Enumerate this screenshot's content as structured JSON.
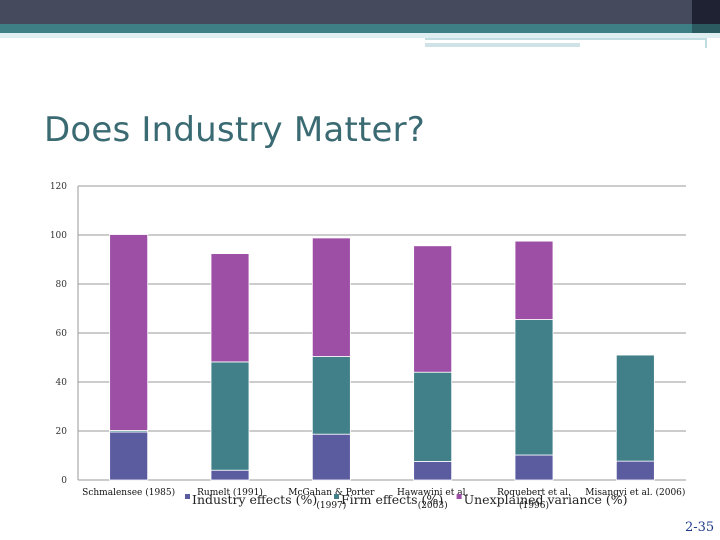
{
  "slide": {
    "title": "Does Industry Matter?",
    "page_number": "2-35"
  },
  "colors": {
    "industry": "#5b5ba0",
    "firm": "#418088",
    "unexplained": "#9d4fa5",
    "axis": "#9a9a9a"
  },
  "chart_data": {
    "type": "bar",
    "stacked": true,
    "title": "",
    "xlabel": "",
    "ylabel": "",
    "ylim": [
      0,
      120
    ],
    "yticks": [
      0,
      20,
      40,
      60,
      80,
      100,
      120
    ],
    "grid": true,
    "legend_position": "bottom",
    "categories": [
      [
        "Schmalensee (1985)"
      ],
      [
        "Rumelt (1991)"
      ],
      [
        "McGahan & Porter",
        "(1997)"
      ],
      [
        "Hawawini et al.",
        "(2003)"
      ],
      [
        "Roquebert et al.",
        "(1996)"
      ],
      [
        "Misangyi et al. (2006)"
      ]
    ],
    "series": [
      {
        "name": "Industry effects (%)",
        "color": "#5b5ba0",
        "values": [
          19.6,
          4,
          18.7,
          7.6,
          10.2,
          7.7
        ]
      },
      {
        "name": "Firm effects (%)",
        "color": "#418088",
        "values": [
          0.6,
          44.2,
          31.7,
          36.4,
          55.3,
          43.3
        ]
      },
      {
        "name": "Unexplained variance (%)",
        "color": "#9d4fa5",
        "values": [
          80,
          44.2,
          48.4,
          51.6,
          32,
          0
        ]
      }
    ]
  }
}
